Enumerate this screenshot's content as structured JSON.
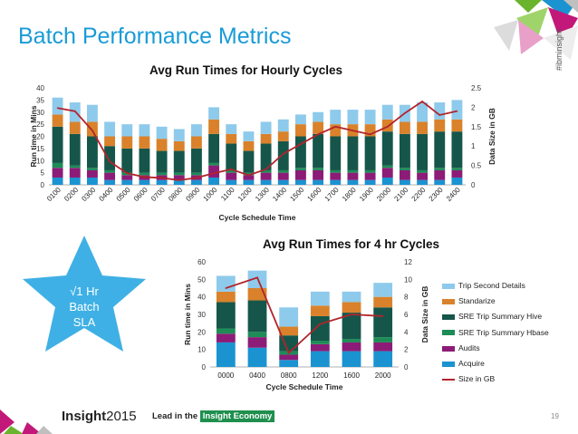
{
  "slide": {
    "title": "Batch Performance Metrics",
    "hashtag": "#ibminsight",
    "star_label_lines": [
      "√1 Hr",
      "Batch",
      "SLA"
    ],
    "footer_brand": "Insight",
    "footer_year": "2015",
    "footer_tagline": "Lead in the",
    "footer_tagline_highlight": "Insight Economy",
    "page_number": "19"
  },
  "colors": {
    "title": "#1a9bd7",
    "trip_second_details": "#8ecaeb",
    "standarize": "#d9822b",
    "sre_trip_summary_hive": "#16564a",
    "sre_trip_summary_hbase": "#1e8c57",
    "audits": "#8c1c77",
    "acquire": "#1b93d1",
    "size_in_gb": "#b2242c",
    "star": "#3fb0e5",
    "deco_green": "#6ab42d",
    "deco_magenta": "#c2187a",
    "deco_gray": "#bfbfbf"
  },
  "legend": [
    {
      "name": "Trip Second Details",
      "kind": "bar",
      "color_key": "trip_second_details"
    },
    {
      "name": "Standarize",
      "kind": "bar",
      "color_key": "standarize"
    },
    {
      "name": "SRE Trip Summary Hive",
      "kind": "bar",
      "color_key": "sre_trip_summary_hive"
    },
    {
      "name": "SRE Trip Summary Hbase",
      "kind": "bar",
      "color_key": "sre_trip_summary_hbase"
    },
    {
      "name": "Audits",
      "kind": "bar",
      "color_key": "audits"
    },
    {
      "name": "Acquire",
      "kind": "bar",
      "color_key": "acquire"
    },
    {
      "name": "Size in GB",
      "kind": "line",
      "color_key": "size_in_gb"
    }
  ],
  "chart_data": [
    {
      "type": "bar",
      "stacked": true,
      "title": "Avg Run Times for Hourly Cycles",
      "xlabel": "Cycle Schedule Time",
      "ylabel": "Run time in Mins",
      "y2label": "Data Size in GB",
      "ylim": [
        0,
        40
      ],
      "yticks": [
        0,
        5,
        10,
        15,
        20,
        25,
        30,
        35,
        40
      ],
      "y2lim": [
        0,
        2.5
      ],
      "y2ticks": [
        "0",
        "0.5",
        "1",
        "1.5",
        "2",
        "2.5"
      ],
      "categories": [
        "0100",
        "0200",
        "0300",
        "0400",
        "0500",
        "0600",
        "0700",
        "0800",
        "0900",
        "1000",
        "1100",
        "1200",
        "1300",
        "1400",
        "1500",
        "1600",
        "1700",
        "1800",
        "1900",
        "2000",
        "2100",
        "2200",
        "2300",
        "2400"
      ],
      "series": [
        {
          "name": "Acquire",
          "values": [
            3,
            3,
            3,
            2,
            2,
            2,
            2,
            2,
            2,
            3,
            2,
            2,
            2,
            2,
            2,
            2,
            2,
            2,
            2,
            3,
            2,
            2,
            2,
            3
          ]
        },
        {
          "name": "Audits",
          "values": [
            4,
            4,
            3,
            3,
            2,
            2,
            2,
            2,
            2,
            5,
            3,
            2,
            3,
            3,
            4,
            4,
            3,
            3,
            3,
            4,
            4,
            3,
            4,
            3
          ]
        },
        {
          "name": "SRE Trip Summary Hbase",
          "values": [
            2,
            1,
            1,
            1,
            1,
            1,
            1,
            1,
            1,
            1,
            1,
            1,
            1,
            1,
            1,
            1,
            1,
            1,
            1,
            1,
            1,
            1,
            1,
            1
          ]
        },
        {
          "name": "SRE Trip Summary Hive",
          "values": [
            15,
            13,
            13,
            10,
            10,
            10,
            9,
            9,
            10,
            12,
            11,
            9,
            11,
            12,
            13,
            14,
            14,
            14,
            14,
            14,
            14,
            15,
            15,
            15
          ]
        },
        {
          "name": "Standarize",
          "values": [
            5,
            5,
            6,
            4,
            5,
            5,
            5,
            4,
            5,
            6,
            4,
            4,
            4,
            4,
            5,
            5,
            5,
            5,
            5,
            5,
            5,
            5,
            5,
            5
          ]
        },
        {
          "name": "Trip Second Details",
          "values": [
            7,
            8,
            7,
            6,
            5,
            5,
            5,
            5,
            5,
            5,
            4,
            4,
            5,
            5,
            4,
            4,
            6,
            6,
            6,
            6,
            7,
            8,
            7,
            8
          ]
        }
      ],
      "line": {
        "name": "Size in GB",
        "axis": "right",
        "values": [
          1.98,
          1.9,
          1.4,
          0.6,
          0.3,
          0.2,
          0.18,
          0.12,
          0.18,
          0.3,
          0.4,
          0.25,
          0.4,
          0.8,
          1.05,
          1.3,
          1.5,
          1.4,
          1.3,
          1.5,
          1.85,
          2.15,
          1.8,
          1.9
        ]
      }
    },
    {
      "type": "bar",
      "stacked": true,
      "title": "Avg Run Times for 4 hr Cycles",
      "xlabel": "Cycle Schedule Time",
      "ylabel": "Run time in Mins",
      "y2label": "Data Size in GB",
      "ylim": [
        0,
        60
      ],
      "yticks": [
        0,
        10,
        20,
        30,
        40,
        50,
        60
      ],
      "y2lim": [
        0,
        12
      ],
      "y2ticks": [
        "0",
        "2",
        "4",
        "6",
        "8",
        "10",
        "12"
      ],
      "categories": [
        "0000",
        "0400",
        "0800",
        "1200",
        "1600",
        "2000"
      ],
      "series": [
        {
          "name": "Acquire",
          "values": [
            14,
            11,
            4,
            9,
            9,
            9
          ]
        },
        {
          "name": "Audits",
          "values": [
            5,
            6,
            3,
            4,
            5,
            5
          ]
        },
        {
          "name": "SRE Trip Summary Hbase",
          "values": [
            3,
            3,
            2,
            2,
            2,
            3
          ]
        },
        {
          "name": "SRE Trip Summary Hive",
          "values": [
            15,
            18,
            9,
            14,
            15,
            17
          ]
        },
        {
          "name": "Standarize",
          "values": [
            6,
            7,
            5,
            6,
            6,
            6
          ]
        },
        {
          "name": "Trip Second Details",
          "values": [
            9,
            10,
            11,
            8,
            6,
            8
          ]
        }
      ],
      "line": {
        "name": "Size in GB",
        "axis": "right",
        "values": [
          9,
          10.2,
          1.6,
          4.9,
          6,
          5.8
        ]
      }
    }
  ]
}
